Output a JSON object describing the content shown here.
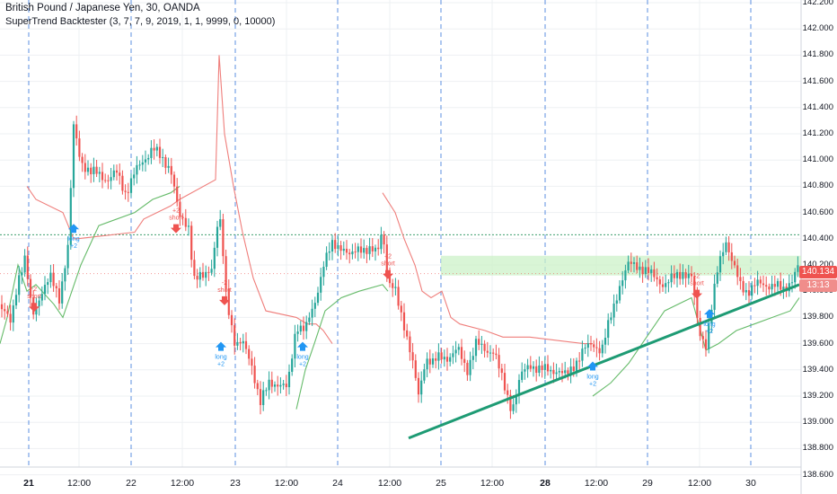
{
  "header": {
    "symbol_line": "British Pound / Japanese Yen, 30, OANDA",
    "indicator_line": "SuperTrend Backtester (3, 7, 7, 9, 2019, 1, 1, 9999, 0, 10000)"
  },
  "price_axis": {
    "labels": [
      "142.200",
      "142.000",
      "141.800",
      "141.600",
      "141.400",
      "141.200",
      "141.000",
      "140.800",
      "140.600",
      "140.400",
      "140.200",
      "140.000",
      "139.800",
      "139.600",
      "139.400",
      "139.200",
      "139.000",
      "138.800",
      "138.600"
    ],
    "current_price": "140.134",
    "countdown": "13:13"
  },
  "time_axis": {
    "labels": [
      {
        "text": "21",
        "bold": true
      },
      {
        "text": "12:00",
        "bold": false
      },
      {
        "text": "22",
        "bold": false
      },
      {
        "text": "12:00",
        "bold": false
      },
      {
        "text": "23",
        "bold": false
      },
      {
        "text": "12:00",
        "bold": false
      },
      {
        "text": "24",
        "bold": false
      },
      {
        "text": "12:00",
        "bold": false
      },
      {
        "text": "25",
        "bold": false
      },
      {
        "text": "12:00",
        "bold": false
      },
      {
        "text": "28",
        "bold": true
      },
      {
        "text": "12:00",
        "bold": false
      },
      {
        "text": "29",
        "bold": false
      },
      {
        "text": "12:00",
        "bold": false
      },
      {
        "text": "30",
        "bold": false
      }
    ]
  },
  "signals": [
    {
      "type": "short",
      "line1": "-2",
      "line2": "short"
    },
    {
      "type": "long",
      "line1": "long",
      "line2": "+2"
    },
    {
      "type": "short",
      "line1": "+2",
      "line2": "short"
    },
    {
      "type": "short",
      "line1": "-2",
      "line2": "short"
    },
    {
      "type": "long",
      "line1": "long",
      "line2": "+2"
    },
    {
      "type": "long",
      "line1": "long",
      "line2": "+2"
    },
    {
      "type": "short",
      "line1": "+2",
      "line2": "short"
    },
    {
      "type": "long",
      "line1": "long",
      "line2": "+2"
    },
    {
      "type": "short",
      "line1": "-2",
      "line2": "short"
    },
    {
      "type": "long",
      "line1": "long",
      "line2": "+2"
    }
  ],
  "colors": {
    "bull": "#26a69a",
    "bear": "#ef5350",
    "supertrend_up": "#66bb6a",
    "supertrend_down": "#ef7e7b",
    "trendline": "#1e9b74",
    "zone": "#ccf2c8",
    "gridline": "#eef0f3",
    "day_separator": "#5b8fe0",
    "price_badge": "#ef5350"
  }
}
